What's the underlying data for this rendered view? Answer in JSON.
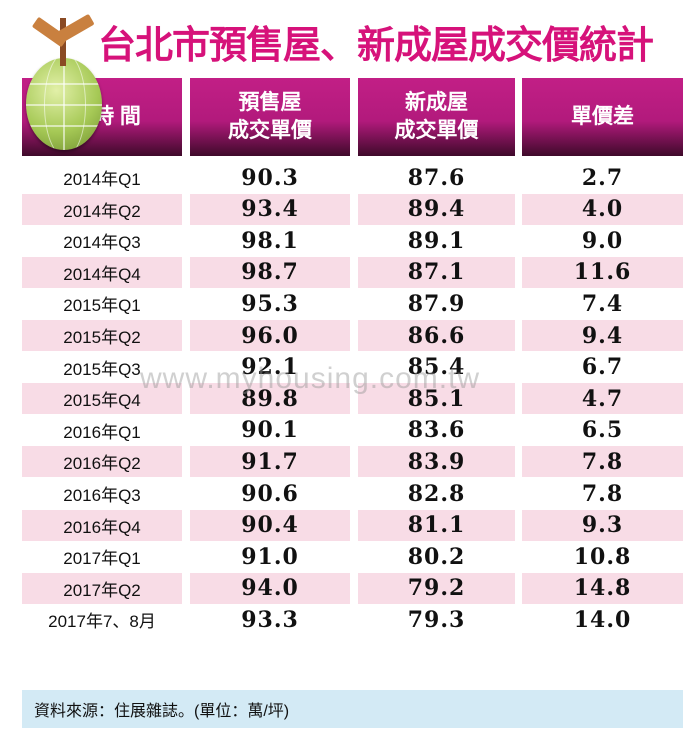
{
  "title": "台北市預售屋、新成屋成交價統計",
  "icon": "signpost-globe-icon",
  "colors": {
    "title": "#d6127a",
    "header": "#b21a7c",
    "row_alt": "#f8dce6",
    "footer": "#d3eaf5"
  },
  "headers": [
    "時 間",
    "預售屋\n成交單價",
    "新成屋\n成交單價",
    "單價差"
  ],
  "header_lines": [
    [
      "時 間"
    ],
    [
      "預售屋",
      "成交單價"
    ],
    [
      "新成屋",
      "成交單價"
    ],
    [
      "單價差"
    ]
  ],
  "rows": [
    {
      "period": "2014年Q1",
      "presale": "90.3",
      "new": "87.6",
      "diff": "2.7"
    },
    {
      "period": "2014年Q2",
      "presale": "93.4",
      "new": "89.4",
      "diff": "4.0"
    },
    {
      "period": "2014年Q3",
      "presale": "98.1",
      "new": "89.1",
      "diff": "9.0"
    },
    {
      "period": "2014年Q4",
      "presale": "98.7",
      "new": "87.1",
      "diff": "11.6"
    },
    {
      "period": "2015年Q1",
      "presale": "95.3",
      "new": "87.9",
      "diff": "7.4"
    },
    {
      "period": "2015年Q2",
      "presale": "96.0",
      "new": "86.6",
      "diff": "9.4"
    },
    {
      "period": "2015年Q3",
      "presale": "92.1",
      "new": "85.4",
      "diff": "6.7"
    },
    {
      "period": "2015年Q4",
      "presale": "89.8",
      "new": "85.1",
      "diff": "4.7"
    },
    {
      "period": "2016年Q1",
      "presale": "90.1",
      "new": "83.6",
      "diff": "6.5"
    },
    {
      "period": "2016年Q2",
      "presale": "91.7",
      "new": "83.9",
      "diff": "7.8"
    },
    {
      "period": "2016年Q3",
      "presale": "90.6",
      "new": "82.8",
      "diff": "7.8"
    },
    {
      "period": "2016年Q4",
      "presale": "90.4",
      "new": "81.1",
      "diff": "9.3"
    },
    {
      "period": "2017年Q1",
      "presale": "91.0",
      "new": "80.2",
      "diff": "10.8"
    },
    {
      "period": "2017年Q2",
      "presale": "94.0",
      "new": "79.2",
      "diff": "14.8"
    },
    {
      "period": "2017年7、8月",
      "presale": "93.3",
      "new": "79.3",
      "diff": "14.0"
    }
  ],
  "watermark": "www.myhousing.com.tw",
  "footer": "資料來源：住展雜誌。(單位：萬/坪)"
}
